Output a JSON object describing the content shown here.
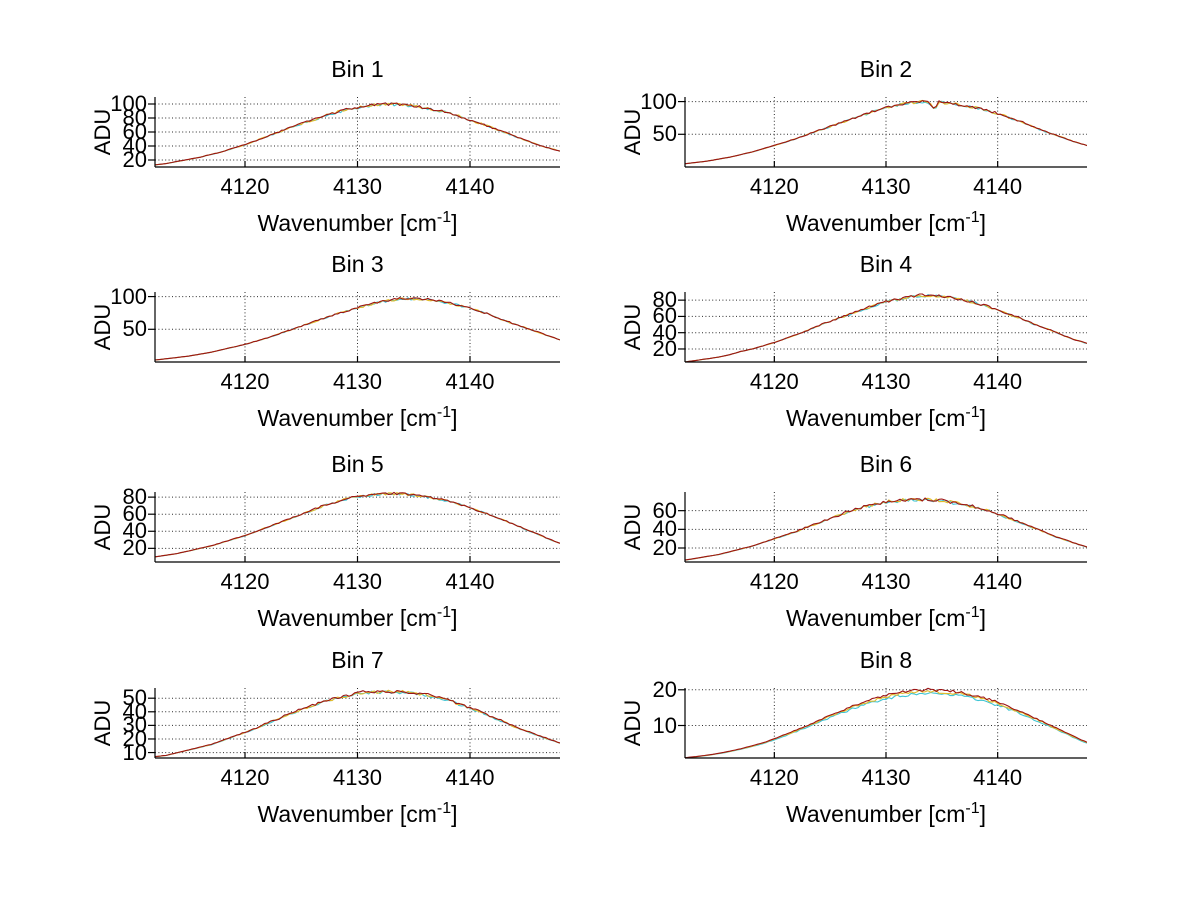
{
  "labels": {
    "ylabel": "ADU",
    "xlabel_main": "Wavenumber [cm",
    "xlabel_sup": "-1",
    "xlabel_close": "]"
  },
  "axis": {
    "xlim": [
      4112,
      4148
    ],
    "xticks": [
      4120,
      4130,
      4140
    ],
    "x_start": 4112,
    "x_step": 1,
    "grid": true,
    "legend": "none"
  },
  "colors": {
    "trace-red": "#9c1414",
    "trace-yellow": "#e3bb2a",
    "trace-cyan": "#3ec4d4",
    "axis": "#000000",
    "grid": "#2b2b2b",
    "background": "#ffffff"
  },
  "chart_data": [
    {
      "type": "line",
      "title": "Bin 1",
      "xlabel": "Wavenumber [cm^-1]",
      "ylabel": "ADU",
      "ylim": [
        10,
        110
      ],
      "yticks": [
        20,
        40,
        60,
        80,
        100
      ],
      "noise": 2.2,
      "values": [
        13,
        15,
        18,
        21,
        24,
        28,
        32,
        37,
        42,
        48,
        54,
        60,
        66,
        72,
        77,
        83,
        88,
        92,
        95,
        98,
        99,
        100,
        99,
        98,
        95,
        92,
        88,
        83,
        77,
        72,
        66,
        60,
        54,
        48,
        42,
        37,
        33
      ],
      "series": [
        {
          "name": "trace-cyan",
          "offset": -0.6
        },
        {
          "name": "trace-yellow",
          "offset": -0.3
        },
        {
          "name": "trace-red",
          "offset": 0
        }
      ],
      "spike_dip": null
    },
    {
      "type": "line",
      "title": "Bin 2",
      "xlabel": "Wavenumber [cm^-1]",
      "ylabel": "ADU",
      "ylim": [
        0,
        107
      ],
      "yticks": [
        50,
        100
      ],
      "noise": 2.2,
      "values": [
        5,
        7,
        9,
        12,
        15,
        19,
        23,
        28,
        33,
        38,
        44,
        50,
        56,
        62,
        68,
        74,
        80,
        86,
        91,
        95,
        98,
        100,
        100,
        99,
        97,
        94,
        91,
        87,
        82,
        76,
        70,
        63,
        56,
        50,
        44,
        38,
        33
      ],
      "series": [
        {
          "name": "trace-cyan",
          "offset": -0.6
        },
        {
          "name": "trace-yellow",
          "offset": -0.3
        },
        {
          "name": "trace-red",
          "offset": 0
        }
      ],
      "spike_dip": {
        "x": 4134.3,
        "depth": 13,
        "width": 0.8
      }
    },
    {
      "type": "line",
      "title": "Bin 3",
      "xlabel": "Wavenumber [cm^-1]",
      "ylabel": "ADU",
      "ylim": [
        0,
        107
      ],
      "yticks": [
        50,
        100
      ],
      "noise": 2.0,
      "values": [
        3,
        5,
        7,
        9,
        12,
        15,
        19,
        23,
        27,
        32,
        37,
        43,
        49,
        55,
        61,
        67,
        73,
        78,
        83,
        88,
        92,
        95,
        97,
        97,
        96,
        94,
        91,
        87,
        82,
        77,
        71,
        64,
        58,
        52,
        46,
        40,
        34
      ],
      "series": [
        {
          "name": "trace-cyan",
          "offset": -0.6
        },
        {
          "name": "trace-yellow",
          "offset": -0.3
        },
        {
          "name": "trace-red",
          "offset": 0
        }
      ],
      "spike_dip": null
    },
    {
      "type": "line",
      "title": "Bin 4",
      "xlabel": "Wavenumber [cm^-1]",
      "ylabel": "ADU",
      "ylim": [
        4,
        90
      ],
      "yticks": [
        20,
        40,
        60,
        80
      ],
      "noise": 1.8,
      "values": [
        4,
        6,
        8,
        10,
        13,
        17,
        20,
        24,
        28,
        33,
        38,
        43,
        49,
        54,
        59,
        64,
        69,
        74,
        78,
        81,
        84,
        86,
        86,
        85,
        83,
        80,
        77,
        73,
        68,
        63,
        58,
        52,
        47,
        42,
        36,
        31,
        27
      ],
      "series": [
        {
          "name": "trace-cyan",
          "offset": -0.6
        },
        {
          "name": "trace-yellow",
          "offset": -0.3
        },
        {
          "name": "trace-red",
          "offset": 0
        }
      ],
      "spike_dip": null
    },
    {
      "type": "line",
      "title": "Bin 5",
      "xlabel": "Wavenumber [cm^-1]",
      "ylabel": "ADU",
      "ylim": [
        4,
        86
      ],
      "yticks": [
        20,
        40,
        60,
        80
      ],
      "noise": 1.6,
      "values": [
        10,
        12,
        14,
        17,
        20,
        23,
        27,
        31,
        35,
        40,
        45,
        50,
        55,
        60,
        65,
        70,
        74,
        78,
        81,
        83,
        84,
        84,
        84,
        83,
        81,
        79,
        76,
        72,
        68,
        63,
        58,
        53,
        48,
        42,
        37,
        31,
        26
      ],
      "series": [
        {
          "name": "trace-cyan",
          "offset": -0.6
        },
        {
          "name": "trace-yellow",
          "offset": -0.3
        },
        {
          "name": "trace-red",
          "offset": 0
        }
      ],
      "spike_dip": null
    },
    {
      "type": "line",
      "title": "Bin 6",
      "xlabel": "Wavenumber [cm^-1]",
      "ylabel": "ADU",
      "ylim": [
        5,
        80
      ],
      "yticks": [
        20,
        40,
        60
      ],
      "noise": 1.8,
      "values": [
        7,
        9,
        11,
        13,
        16,
        19,
        22,
        26,
        30,
        34,
        38,
        43,
        47,
        52,
        56,
        61,
        64,
        67,
        70,
        71,
        72,
        72,
        72,
        71,
        69,
        67,
        64,
        61,
        57,
        52,
        48,
        43,
        38,
        33,
        29,
        25,
        21
      ],
      "series": [
        {
          "name": "trace-cyan",
          "offset": -0.6
        },
        {
          "name": "trace-yellow",
          "offset": -0.3
        },
        {
          "name": "trace-red",
          "offset": 0
        }
      ],
      "spike_dip": null
    },
    {
      "type": "line",
      "title": "Bin 7",
      "xlabel": "Wavenumber [cm^-1]",
      "ylabel": "ADU",
      "ylim": [
        6,
        57.5
      ],
      "yticks": [
        10,
        20,
        30,
        40,
        50
      ],
      "noise": 1.2,
      "values": [
        7,
        8,
        10,
        12,
        14,
        16,
        19,
        22,
        25,
        28,
        32,
        35,
        39,
        42,
        45,
        48,
        50,
        52,
        54,
        55,
        55,
        55,
        55,
        54,
        53,
        51,
        49,
        46,
        43,
        40,
        36,
        33,
        29,
        26,
        23,
        20,
        17
      ],
      "series": [
        {
          "name": "trace-cyan",
          "offset": -0.7
        },
        {
          "name": "trace-yellow",
          "offset": -0.35
        },
        {
          "name": "trace-red",
          "offset": 0
        }
      ],
      "spike_dip": null
    },
    {
      "type": "line",
      "title": "Bin 8",
      "xlabel": "Wavenumber [cm^-1]",
      "ylabel": "ADU",
      "ylim": [
        0.9,
        20.5
      ],
      "yticks": [
        10,
        20
      ],
      "noise": 0.45,
      "values": [
        1,
        1.3,
        1.7,
        2.2,
        2.8,
        3.5,
        4.3,
        5.2,
        6.3,
        7.5,
        8.8,
        10.1,
        11.5,
        12.9,
        14.2,
        15.4,
        16.5,
        17.5,
        18.4,
        19.1,
        19.6,
        19.9,
        20,
        19.9,
        19.6,
        19.1,
        18.4,
        17.5,
        16.5,
        15.3,
        14,
        12.6,
        11.2,
        9.7,
        8.2,
        6.7,
        5.3
      ],
      "series": [
        {
          "name": "trace-cyan",
          "offset": -1.0
        },
        {
          "name": "trace-yellow",
          "offset": -0.45
        },
        {
          "name": "trace-red",
          "offset": 0
        }
      ],
      "spike_dip": null
    }
  ]
}
